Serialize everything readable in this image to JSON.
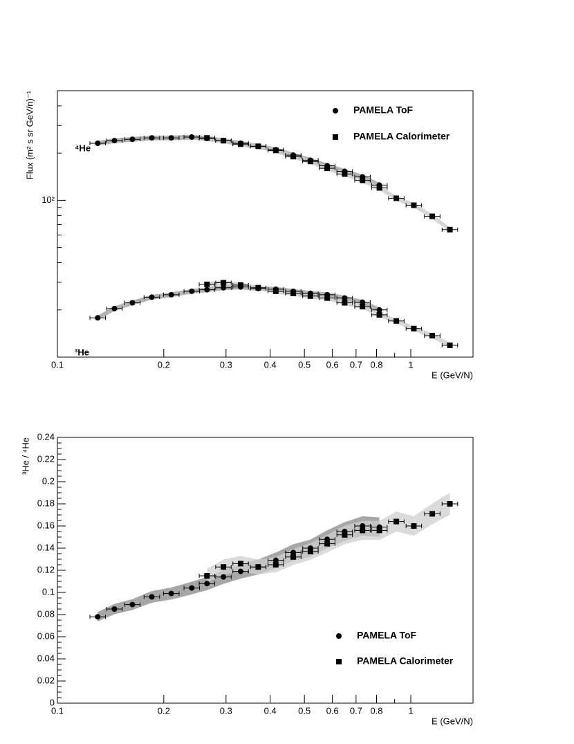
{
  "chart_data": [
    {
      "type": "scatter",
      "ylabel": "Flux (m² s sr GeV/n)⁻¹",
      "xlabel": "E (GeV/N)",
      "xlog": true,
      "ylog": true,
      "xlim": [
        0.1,
        1.5
      ],
      "ylim": [
        10,
        500
      ],
      "xticks": [
        0.1,
        0.2,
        0.3,
        0.4,
        0.5,
        0.6,
        0.7,
        0.8,
        1
      ],
      "xminor_ticks": [
        0.9
      ],
      "yticks": [
        {
          "value": 100,
          "label": "10²"
        }
      ],
      "yminor_ticks": [
        20,
        30,
        40,
        50,
        60,
        70,
        80,
        90,
        200,
        300,
        400,
        500
      ],
      "legend": "upper right",
      "annotations": [
        "⁴He",
        "³He"
      ],
      "series": [
        {
          "name": "PAMELA ToF",
          "marker": "circle",
          "color": "#000000",
          "band_color": "#9a9a9a",
          "x": [
            0.13,
            0.145,
            0.163,
            0.185,
            0.21,
            0.24,
            0.265,
            0.295,
            0.33,
            0.37,
            0.415,
            0.465,
            0.52,
            0.58,
            0.65,
            0.73,
            0.815
          ],
          "values": [
            231,
            240,
            245,
            250,
            250,
            253,
            248,
            240,
            231,
            221,
            210,
            194,
            180,
            166,
            153,
            141,
            125
          ]
        },
        {
          "name": "PAMELA Calorimeter",
          "marker": "square",
          "color": "#000000",
          "band_color": "#c8c8c8",
          "x": [
            0.265,
            0.295,
            0.33,
            0.37,
            0.415,
            0.465,
            0.52,
            0.58,
            0.65,
            0.73,
            0.815,
            0.91,
            1.02,
            1.15,
            1.29
          ],
          "values": [
            250,
            240,
            228,
            221,
            208,
            190,
            177,
            160,
            147,
            134,
            120,
            103,
            93,
            79,
            65
          ]
        },
        {
          "marker": "circle",
          "color": "#000000",
          "band_color": "#9a9a9a",
          "x": [
            0.13,
            0.145,
            0.163,
            0.185,
            0.21,
            0.24,
            0.265,
            0.295,
            0.33,
            0.37,
            0.415,
            0.465,
            0.52,
            0.58,
            0.65,
            0.73,
            0.815
          ],
          "values": [
            17.8,
            20.4,
            22.2,
            24.1,
            25.0,
            26.3,
            26.9,
            27.7,
            28.0,
            27.4,
            27.1,
            26.3,
            25.5,
            25.0,
            23.8,
            22.4,
            20.0
          ]
        },
        {
          "marker": "square",
          "color": "#000000",
          "band_color": "#c8c8c8",
          "x": [
            0.265,
            0.295,
            0.33,
            0.37,
            0.415,
            0.465,
            0.52,
            0.58,
            0.65,
            0.73,
            0.815,
            0.91,
            1.02,
            1.15,
            1.29
          ],
          "values": [
            29.1,
            29.8,
            28.8,
            27.7,
            26.3,
            25.5,
            24.5,
            23.8,
            22.2,
            21.0,
            18.6,
            17.0,
            15.2,
            13.7,
            11.9
          ]
        }
      ]
    },
    {
      "type": "scatter",
      "ylabel": "³He / ⁴He",
      "xlabel": "E (GeV/N)",
      "xlog": true,
      "ylog": false,
      "xlim": [
        0.1,
        1.5
      ],
      "ylim": [
        0,
        0.24
      ],
      "xticks": [
        0.1,
        0.2,
        0.3,
        0.4,
        0.5,
        0.6,
        0.7,
        0.8,
        1
      ],
      "xminor_ticks": [
        0.9
      ],
      "yticks": [
        0,
        0.02,
        0.04,
        0.06,
        0.08,
        0.1,
        0.12,
        0.14,
        0.16,
        0.18,
        0.2,
        0.22,
        0.24
      ],
      "legend": "lower right",
      "series": [
        {
          "name": "PAMELA ToF",
          "marker": "circle",
          "color": "#000000",
          "band_color": "#8a8a8a",
          "x": [
            0.13,
            0.145,
            0.163,
            0.185,
            0.21,
            0.24,
            0.265,
            0.295,
            0.33,
            0.37,
            0.415,
            0.465,
            0.52,
            0.58,
            0.65,
            0.73,
            0.815
          ],
          "values": [
            0.078,
            0.085,
            0.089,
            0.096,
            0.099,
            0.104,
            0.108,
            0.114,
            0.119,
            0.123,
            0.129,
            0.136,
            0.14,
            0.148,
            0.155,
            0.16,
            0.159
          ]
        },
        {
          "name": "PAMELA Calorimeter",
          "marker": "square",
          "color": "#000000",
          "band_color": "#cfcfcf",
          "x": [
            0.265,
            0.295,
            0.33,
            0.37,
            0.415,
            0.465,
            0.52,
            0.58,
            0.65,
            0.73,
            0.815,
            0.91,
            1.02,
            1.15,
            1.29
          ],
          "values": [
            0.115,
            0.123,
            0.126,
            0.123,
            0.125,
            0.132,
            0.137,
            0.144,
            0.152,
            0.156,
            0.156,
            0.164,
            0.16,
            0.171,
            0.18
          ]
        }
      ]
    }
  ]
}
